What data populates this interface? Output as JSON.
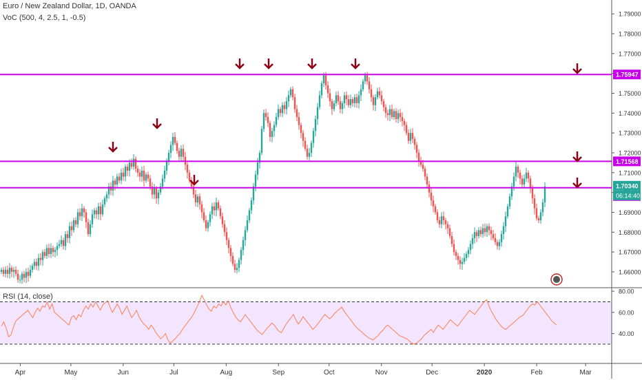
{
  "header": {
    "title": "Euro / New Zealand Dollar, 1D, OANDA",
    "indicator": "VoC (500, 4, 2.5, 1, -0.5)"
  },
  "rsi_panel": {
    "label": "RSI (14, close)"
  },
  "colors": {
    "up": "#26a69a",
    "down": "#ef5350",
    "level_line": "#c800e8",
    "arrow": "#8b0013",
    "rsi_line": "#ff7f50",
    "rsi_band": "#f3e5ff",
    "current_price_badge": "#26a69a",
    "level_badge": "#c800e8"
  },
  "badges": {
    "current_price": "1.70340",
    "countdown": "06:14:40",
    "levels": [
      "1.75947",
      "1.71568",
      "1.70237"
    ]
  },
  "icons": {
    "replay": "replay-icon",
    "arrows": "down-arrow-icon"
  },
  "chart_data": [
    {
      "type": "candlestick",
      "ylim": [
        1.652,
        1.797
      ],
      "y_ticks": [
        "1.79000",
        "1.78000",
        "1.77000",
        "1.76000",
        "1.75000",
        "1.74000",
        "1.73000",
        "1.72000",
        "1.71000",
        "1.70000",
        "1.69000",
        "1.68000",
        "1.67000",
        "1.66000"
      ],
      "x_ticks": [
        "Apr",
        "May",
        "Jun",
        "Jul",
        "Aug",
        "Sep",
        "Oct",
        "Nov",
        "Dec",
        "2020",
        "Feb",
        "Mar"
      ],
      "x_tick_days": [
        12,
        42,
        73,
        103,
        134,
        165,
        195,
        226,
        256,
        287,
        318,
        347
      ],
      "candle_closes": [
        1.661,
        1.659,
        1.661,
        1.659,
        1.662,
        1.66,
        1.661,
        1.659,
        1.656,
        1.656,
        1.659,
        1.657,
        1.66,
        1.658,
        1.661,
        1.663,
        1.665,
        1.663,
        1.667,
        1.666,
        1.67,
        1.668,
        1.672,
        1.669,
        1.672,
        1.67,
        1.671,
        1.673,
        1.674,
        1.676,
        1.673,
        1.679,
        1.677,
        1.683,
        1.681,
        1.686,
        1.684,
        1.69,
        1.688,
        1.692,
        1.69,
        1.685,
        1.679,
        1.684,
        1.689,
        1.691,
        1.689,
        1.693,
        1.689,
        1.694,
        1.697,
        1.699,
        1.703,
        1.701,
        1.706,
        1.704,
        1.708,
        1.706,
        1.71,
        1.708,
        1.713,
        1.711,
        1.715,
        1.713,
        1.717,
        1.712,
        1.71,
        1.708,
        1.711,
        1.706,
        1.709,
        1.707,
        1.703,
        1.699,
        1.702,
        1.697,
        1.7,
        1.703,
        1.707,
        1.711,
        1.716,
        1.72,
        1.724,
        1.728,
        1.725,
        1.721,
        1.718,
        1.722,
        1.718,
        1.714,
        1.71,
        1.706,
        1.703,
        1.699,
        1.695,
        1.698,
        1.694,
        1.69,
        1.686,
        1.682,
        1.685,
        1.689,
        1.693,
        1.691,
        1.695,
        1.692,
        1.688,
        1.684,
        1.68,
        1.676,
        1.672,
        1.668,
        1.664,
        1.661,
        1.662,
        1.666,
        1.671,
        1.676,
        1.681,
        1.686,
        1.691,
        1.696,
        1.703,
        1.709,
        1.715,
        1.72,
        1.732,
        1.74,
        1.738,
        1.735,
        1.728,
        1.731,
        1.734,
        1.738,
        1.742,
        1.74,
        1.744,
        1.742,
        1.746,
        1.749,
        1.752,
        1.748,
        1.742,
        1.738,
        1.734,
        1.73,
        1.726,
        1.722,
        1.718,
        1.72,
        1.725,
        1.731,
        1.737,
        1.743,
        1.749,
        1.755,
        1.759,
        1.754,
        1.75,
        1.746,
        1.742,
        1.745,
        1.749,
        1.746,
        1.742,
        1.745,
        1.749,
        1.747,
        1.744,
        1.747,
        1.745,
        1.748,
        1.745,
        1.749,
        1.752,
        1.756,
        1.759,
        1.756,
        1.752,
        1.748,
        1.744,
        1.748,
        1.751,
        1.749,
        1.746,
        1.743,
        1.74,
        1.739,
        1.742,
        1.738,
        1.741,
        1.737,
        1.74,
        1.738,
        1.736,
        1.734,
        1.73,
        1.726,
        1.73,
        1.727,
        1.724,
        1.72,
        1.716,
        1.714,
        1.712,
        1.708,
        1.704,
        1.7,
        1.696,
        1.693,
        1.69,
        1.686,
        1.684,
        1.688,
        1.686,
        1.684,
        1.682,
        1.678,
        1.674,
        1.67,
        1.668,
        1.666,
        1.664,
        1.665,
        1.667,
        1.669,
        1.671,
        1.674,
        1.677,
        1.68,
        1.678,
        1.681,
        1.679,
        1.682,
        1.68,
        1.683,
        1.681,
        1.679,
        1.677,
        1.675,
        1.673,
        1.675,
        1.679,
        1.683,
        1.688,
        1.693,
        1.698,
        1.703,
        1.708,
        1.713,
        1.71,
        1.707,
        1.704,
        1.707,
        1.71,
        1.707,
        1.702,
        1.697,
        1.692,
        1.687,
        1.686,
        1.69,
        1.695,
        1.703
      ]
    },
    {
      "type": "line",
      "name": "RSI (14, close)",
      "ylim": [
        20,
        80
      ],
      "y_ticks": [
        "80.00",
        "60.00",
        "40.00"
      ],
      "band": [
        30,
        70
      ],
      "values": [
        47,
        51,
        45,
        37,
        39,
        46,
        52,
        54,
        56,
        58,
        60,
        62,
        58,
        55,
        60,
        64,
        61,
        66,
        65,
        70,
        63,
        68,
        60,
        58,
        56,
        54,
        52,
        50,
        48,
        55,
        57,
        53,
        58,
        56,
        62,
        66,
        63,
        68,
        65,
        70,
        66,
        62,
        67,
        69,
        71,
        65,
        60,
        64,
        68,
        64,
        58,
        62,
        66,
        60,
        55,
        58,
        62,
        56,
        52,
        49,
        47,
        44,
        48,
        45,
        41,
        38,
        35,
        37,
        40,
        34,
        31,
        33,
        35,
        38,
        40,
        44,
        47,
        50,
        53,
        56,
        60,
        65,
        70,
        76,
        72,
        67,
        63,
        61,
        66,
        64,
        68,
        66,
        70,
        67,
        71,
        65,
        60,
        56,
        53,
        51,
        54,
        58,
        55,
        52,
        49,
        46,
        43,
        41,
        39,
        42,
        45,
        47,
        50,
        48,
        45,
        42,
        41,
        45,
        49,
        52,
        55,
        58,
        53,
        49,
        52,
        56,
        53,
        50,
        47,
        44,
        46,
        49,
        52,
        55,
        58,
        56,
        54,
        56,
        59,
        61,
        63,
        65,
        61,
        58,
        55,
        52,
        49,
        46,
        44,
        42,
        40,
        38,
        36,
        35,
        34,
        36,
        38,
        41,
        43,
        46,
        48,
        46,
        44,
        42,
        40,
        38,
        37,
        36,
        35,
        33,
        31,
        30,
        31,
        33,
        35,
        38,
        40,
        42,
        44,
        41,
        45,
        48,
        46,
        44,
        47,
        50,
        53,
        51,
        49,
        47,
        50,
        53,
        56,
        59,
        62,
        60,
        58,
        61,
        64,
        67,
        70,
        72,
        66,
        61,
        57,
        53,
        50,
        47,
        45,
        44,
        46,
        48,
        50,
        52,
        54,
        56,
        57,
        60,
        63,
        66,
        68,
        67,
        70,
        67,
        64,
        61,
        58,
        55,
        52,
        50,
        48
      ]
    }
  ]
}
